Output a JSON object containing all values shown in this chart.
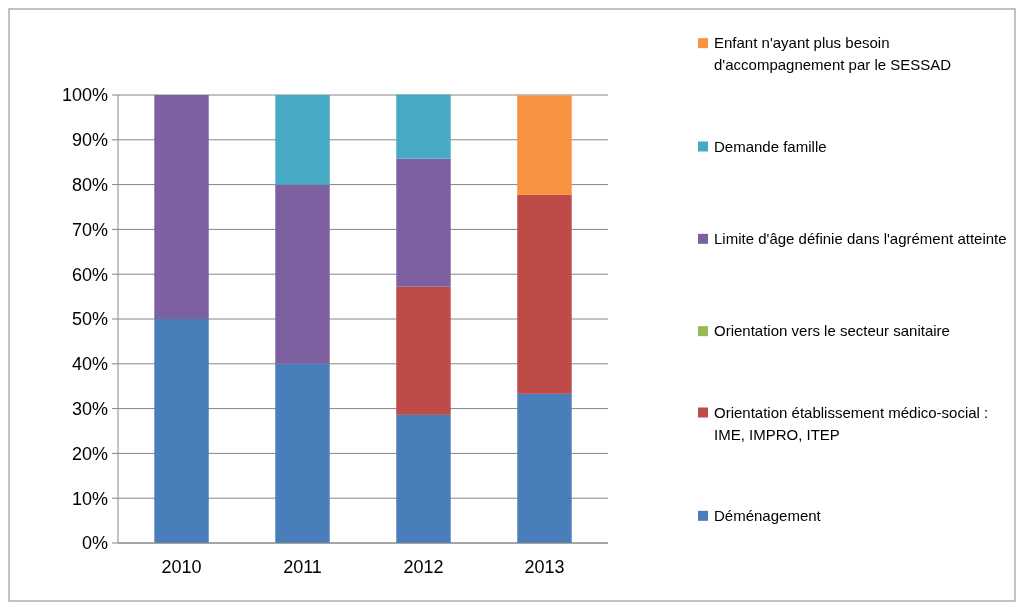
{
  "chart_data": {
    "type": "bar",
    "stacked": true,
    "categories": [
      "2010",
      "2011",
      "2012",
      "2013"
    ],
    "series": [
      {
        "name": "Déménagement",
        "color": "#4a7ebb",
        "values": [
          50,
          40,
          28.6,
          33.3
        ]
      },
      {
        "name": "Orientation établissement médico-social : IME, IMPRO, ITEP",
        "color": "#be4b48",
        "values": [
          0,
          0,
          28.6,
          44.4
        ]
      },
      {
        "name": "Orientation vers le secteur sanitaire",
        "color": "#98b954",
        "values": [
          0,
          0,
          0,
          0
        ]
      },
      {
        "name": "Limite d'âge définie dans l'agrément atteinte",
        "color": "#7d60a0",
        "values": [
          50,
          40,
          28.6,
          0
        ]
      },
      {
        "name": "Demande famille",
        "color": "#46aac5",
        "values": [
          0,
          20,
          14.3,
          0
        ]
      },
      {
        "name": "Enfant n'ayant plus besoin d'accompagnement par le SESSAD",
        "color": "#f69240",
        "values": [
          0,
          0,
          0,
          22.2
        ]
      }
    ],
    "ylim": [
      0,
      100
    ],
    "yticks": [
      {
        "value": 0,
        "label": "0%"
      },
      {
        "value": 10,
        "label": "10%"
      },
      {
        "value": 20,
        "label": "20%"
      },
      {
        "value": 30,
        "label": "30%"
      },
      {
        "value": 40,
        "label": "40%"
      },
      {
        "value": 50,
        "label": "50%"
      },
      {
        "value": 60,
        "label": "60%"
      },
      {
        "value": 70,
        "label": "70%"
      },
      {
        "value": 80,
        "label": "80%"
      },
      {
        "value": 90,
        "label": "90%"
      },
      {
        "value": 100,
        "label": "100%"
      }
    ],
    "grid": true,
    "legend": "right"
  }
}
